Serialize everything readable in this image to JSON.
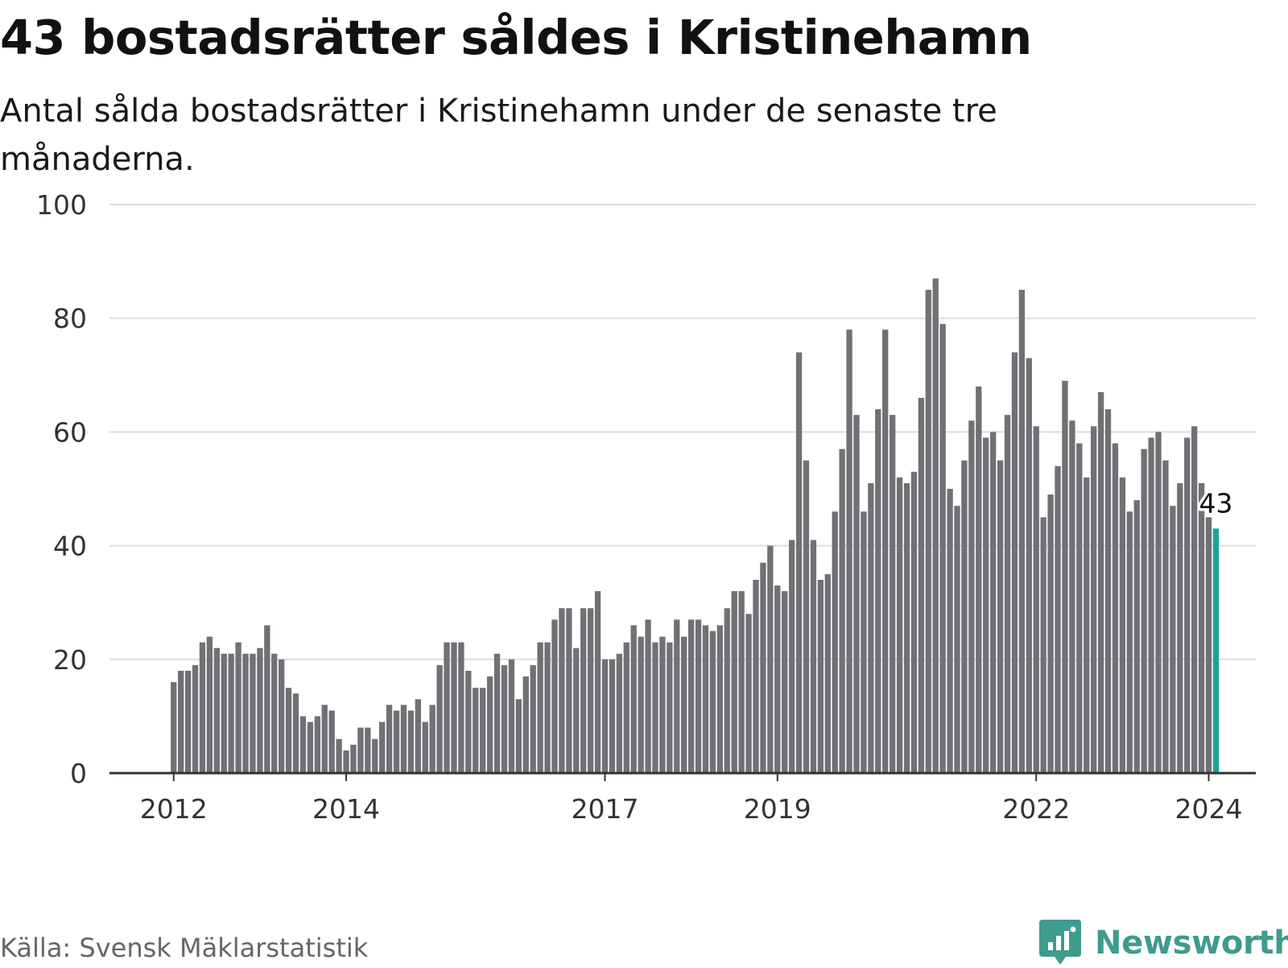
{
  "title": "43 bostadsrätter såldes i Kristinehamn",
  "subtitle": "Antal sålda bostadsrätter i Kristinehamn under de senaste tre månaderna.",
  "source": "Källa: Svensk Mäklarstatistik",
  "brand": "Newsworthy",
  "colors": {
    "bar": "#707075",
    "highlight": "#1ba39a",
    "grid": "#dddddd",
    "axis": "#333333",
    "brand": "#3f9b8d"
  },
  "chart_data": {
    "type": "bar",
    "title": "43 bostadsrätter såldes i Kristinehamn",
    "xlabel": "",
    "ylabel": "",
    "ylim": [
      0,
      100
    ],
    "yticks": [
      0,
      20,
      40,
      60,
      80,
      100
    ],
    "x_range": [
      2011.29,
      2024.58
    ],
    "xticks": [
      {
        "value": 2012,
        "label": "2012"
      },
      {
        "value": 2014,
        "label": "2014"
      },
      {
        "value": 2017,
        "label": "2017"
      },
      {
        "value": 2019,
        "label": "2019"
      },
      {
        "value": 2022,
        "label": "2022"
      },
      {
        "value": 2024,
        "label": "2024"
      }
    ],
    "x_start": "2012-01",
    "frequency": "monthly",
    "values": [
      16,
      18,
      18,
      19,
      23,
      24,
      22,
      21,
      21,
      23,
      21,
      21,
      22,
      26,
      21,
      20,
      15,
      14,
      10,
      9,
      10,
      12,
      11,
      6,
      4,
      5,
      8,
      8,
      6,
      9,
      12,
      11,
      12,
      11,
      13,
      9,
      12,
      19,
      23,
      23,
      23,
      18,
      15,
      15,
      17,
      21,
      19,
      20,
      13,
      17,
      19,
      23,
      23,
      27,
      29,
      29,
      22,
      29,
      29,
      32,
      20,
      20,
      21,
      23,
      26,
      24,
      27,
      23,
      24,
      23,
      27,
      24,
      27,
      27,
      26,
      25,
      26,
      29,
      32,
      32,
      28,
      34,
      37,
      40,
      33,
      32,
      41,
      74,
      55,
      41,
      34,
      35,
      46,
      57,
      78,
      63,
      46,
      51,
      64,
      78,
      63,
      52,
      51,
      53,
      66,
      85,
      87,
      79,
      50,
      47,
      55,
      62,
      68,
      59,
      60,
      55,
      63,
      74,
      85,
      73,
      61,
      45,
      49,
      54,
      69,
      62,
      58,
      52,
      61,
      67,
      64,
      58,
      52,
      46,
      48,
      57,
      59,
      60,
      55,
      47,
      51,
      59,
      61,
      51,
      45,
      43
    ],
    "highlight_last": true,
    "annotation": "43"
  }
}
